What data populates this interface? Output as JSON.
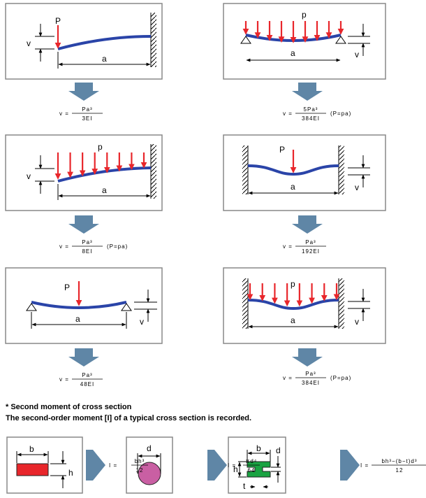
{
  "colors": {
    "beam": "#2a44a8",
    "load": "#e8262b",
    "arrow": "#5f86a6",
    "rect": "#e8262b",
    "circle": "#c95fa3",
    "ibeam": "#1aa342"
  },
  "labels": {
    "point_load": "P",
    "dist_load": "p",
    "deflection": "v",
    "length": "a",
    "b": "b",
    "h": "h",
    "d": "d",
    "t": "t"
  },
  "formulas": [
    {
      "lhs": "v =",
      "num": "Pa³",
      "den": "3EI",
      "suffix": ""
    },
    {
      "lhs": "v =",
      "num": "5Pa³",
      "den": "384EI",
      "suffix": "(P=pa)"
    },
    {
      "lhs": "v =",
      "num": "Pa³",
      "den": "8EI",
      "suffix": "(P=pa)"
    },
    {
      "lhs": "v =",
      "num": "Pa³",
      "den": "192EI",
      "suffix": ""
    },
    {
      "lhs": "v =",
      "num": "Pa³",
      "den": "48EI",
      "suffix": ""
    },
    {
      "lhs": "v =",
      "num": "Pa³",
      "den": "384EI",
      "suffix": "(P=pa)"
    }
  ],
  "note": {
    "line1": "* Second moment of cross section",
    "line2": "The second-order moment [I] of a typical cross section is recorded."
  },
  "sections": [
    {
      "lhs": "I =",
      "num": "bh³",
      "den": "12"
    },
    {
      "lhs": "I =",
      "num": "πd⁴",
      "den": "64"
    },
    {
      "lhs": "I =",
      "num": "bh³−(b−t)d³",
      "den": "12"
    }
  ]
}
